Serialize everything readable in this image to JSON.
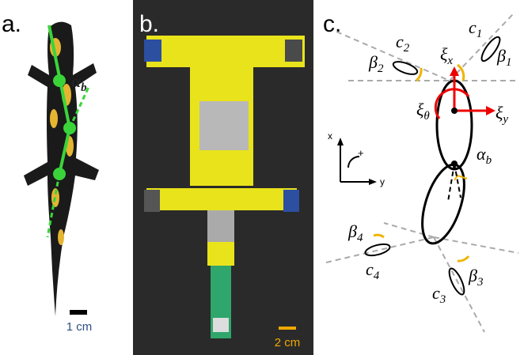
{
  "figure": {
    "panel_a": {
      "label": "a.",
      "angle_label": {
        "symbol": "α",
        "sub": "b"
      },
      "scale_bar": "1 cm"
    },
    "panel_b": {
      "label": "b.",
      "scale_bar": "2 cm"
    },
    "panel_c": {
      "label": "c.",
      "frame": {
        "x": "x",
        "y": "y",
        "rotation": "+"
      },
      "body_axes": [
        {
          "symbol": "ξ",
          "sub": "x"
        },
        {
          "symbol": "ξ",
          "sub": "y"
        },
        {
          "symbol": "ξ",
          "sub": "θ"
        }
      ],
      "joint_angle": {
        "symbol": "α",
        "sub": "b"
      },
      "feet": [
        {
          "symbol": "c",
          "sub": "1"
        },
        {
          "symbol": "c",
          "sub": "2"
        },
        {
          "symbol": "c",
          "sub": "3"
        },
        {
          "symbol": "c",
          "sub": "4"
        }
      ],
      "foot_angles": [
        {
          "symbol": "β",
          "sub": "1"
        },
        {
          "symbol": "β",
          "sub": "2"
        },
        {
          "symbol": "β",
          "sub": "3"
        },
        {
          "symbol": "β",
          "sub": "4"
        }
      ]
    }
  }
}
